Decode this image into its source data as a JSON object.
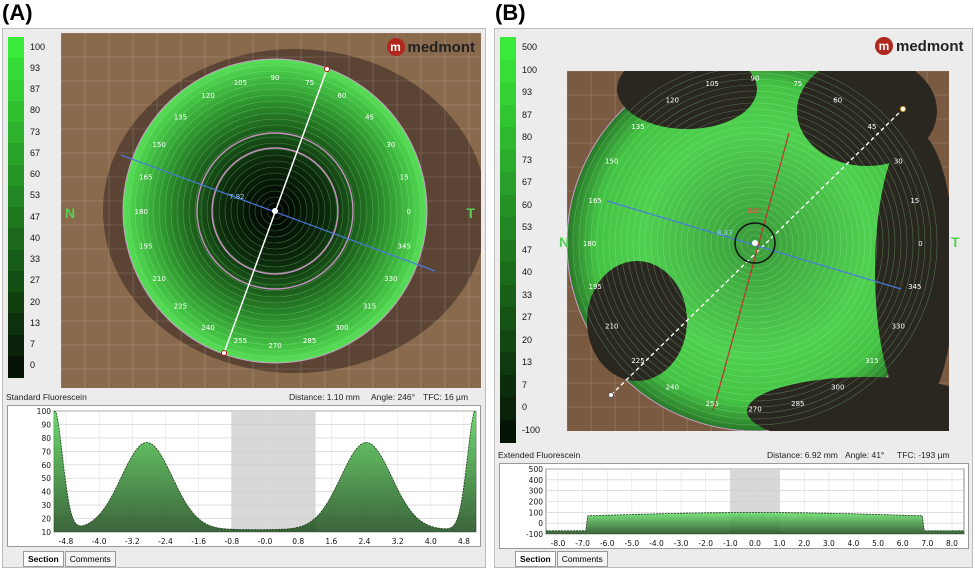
{
  "brand": "medmont",
  "panels": [
    {
      "label": "(A)",
      "map_type": "Standard Fluorescein",
      "scale": [
        "100",
        "93",
        "87",
        "80",
        "73",
        "67",
        "60",
        "53",
        "47",
        "40",
        "33",
        "27",
        "20",
        "13",
        "7",
        "0"
      ],
      "left_side": "N",
      "right_side": "T",
      "center_readout": "",
      "line_readout": "7.82",
      "info": {
        "distance": "Distance: 1.10 mm",
        "angle": "Angle: 246°",
        "tfc": "TFC: 16 µm"
      },
      "angle_labels": [
        "90",
        "75",
        "60",
        "45",
        "30",
        "15",
        "0",
        "345",
        "330",
        "315",
        "300",
        "285",
        "270",
        "255",
        "240",
        "225",
        "210",
        "195",
        "180",
        "165",
        "150",
        "135",
        "120",
        "105"
      ],
      "profile": {
        "y_labels": [
          "100",
          "90",
          "80",
          "70",
          "60",
          "50",
          "40",
          "30",
          "20",
          "10"
        ],
        "x_labels": [
          "-4.8",
          "-4.0",
          "-3.2",
          "-2.4",
          "-1.6",
          "-0.8",
          "-0.0",
          "0.8",
          "1.6",
          "2.4",
          "3.2",
          "4.0",
          "4.8"
        ]
      },
      "tabs": [
        "Section",
        "Comments"
      ],
      "colors": {
        "fill": "#2f8a2f",
        "peak": "#56d456"
      }
    },
    {
      "label": "(B)",
      "map_type": "Extended Fluorescein",
      "scale": [
        "500",
        "100",
        "93",
        "87",
        "80",
        "73",
        "67",
        "60",
        "53",
        "47",
        "40",
        "33",
        "27",
        "20",
        "13",
        "7",
        "0",
        "-100"
      ],
      "left_side": "N",
      "right_side": "T",
      "center_readout": "0.00",
      "line_readout": "8.33",
      "info": {
        "distance": "Distance: 6.92 mm",
        "angle": "Angle: 41°",
        "tfc": "TFC: -193 µm"
      },
      "angle_labels": [
        "90",
        "75",
        "60",
        "45",
        "30",
        "15",
        "0",
        "345",
        "330",
        "315",
        "300",
        "285",
        "270",
        "255",
        "240",
        "225",
        "210",
        "195",
        "180",
        "165",
        "150",
        "135",
        "120",
        "105"
      ],
      "profile": {
        "y_labels": [
          "500",
          "400",
          "300",
          "200",
          "100",
          "0",
          "-100"
        ],
        "x_labels": [
          "-8.0",
          "-7.0",
          "-6.0",
          "-5.0",
          "-4.0",
          "-3.0",
          "-2.0",
          "-1.0",
          "0.0",
          "1.0",
          "2.0",
          "3.0",
          "4.0",
          "5.0",
          "6.0",
          "7.0",
          "8.0"
        ]
      },
      "tabs": [
        "Section",
        "Comments"
      ],
      "colors": {
        "fill": "#43c843",
        "peak": "#66e066"
      }
    }
  ]
}
